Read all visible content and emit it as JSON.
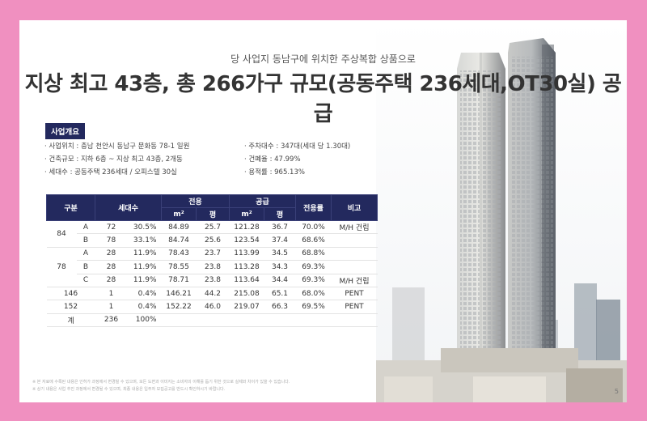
{
  "header": {
    "subtitle": "당 사업지 동남구에 위치한 주상복합 상품으로",
    "title": "지상 최고 43층, 총 266가구 규모(공동주택 236세대,OT30실) 공급"
  },
  "overview": {
    "badge": "사업개요",
    "left": [
      "· 사업위치 : 충남 천안시 동남구 문화동 78-1 일원",
      "· 건축규모 : 지하 6층 ~ 지상 최고 43층, 2개동",
      "· 세대수 : 공동주택 236세대 / 오피스텔 30실"
    ],
    "right": [
      "· 주차대수 : 347대(세대 당 1.30대)",
      "· 건폐율 : 47.99%",
      "· 용적률 : 965.13%"
    ]
  },
  "table": {
    "headers": {
      "group": "구분",
      "units": "세대수",
      "exclusive": "전용",
      "supply": "공급",
      "ratio": "전용률",
      "note": "비고",
      "m2": "m²",
      "pyeong": "평"
    },
    "rows": [
      {
        "size": "84",
        "type": "A",
        "units": "72",
        "pct": "30.5%",
        "ex_m2": "84.89",
        "ex_py": "25.7",
        "su_m2": "121.28",
        "su_py": "36.7",
        "ratio": "70.0%",
        "note": "M/H 건립"
      },
      {
        "size": "",
        "type": "B",
        "units": "78",
        "pct": "33.1%",
        "ex_m2": "84.74",
        "ex_py": "25.6",
        "su_m2": "123.54",
        "su_py": "37.4",
        "ratio": "68.6%",
        "note": ""
      },
      {
        "size": "",
        "type": "A",
        "units": "28",
        "pct": "11.9%",
        "ex_m2": "78.43",
        "ex_py": "23.7",
        "su_m2": "113.99",
        "su_py": "34.5",
        "ratio": "68.8%",
        "note": ""
      },
      {
        "size": "78",
        "type": "B",
        "units": "28",
        "pct": "11.9%",
        "ex_m2": "78.55",
        "ex_py": "23.8",
        "su_m2": "113.28",
        "su_py": "34.3",
        "ratio": "69.3%",
        "note": ""
      },
      {
        "size": "",
        "type": "C",
        "units": "28",
        "pct": "11.9%",
        "ex_m2": "78.71",
        "ex_py": "23.8",
        "su_m2": "113.64",
        "su_py": "34.4",
        "ratio": "69.3%",
        "note": "M/H 건립"
      },
      {
        "size": "146",
        "type": "",
        "units": "1",
        "pct": "0.4%",
        "ex_m2": "146.21",
        "ex_py": "44.2",
        "su_m2": "215.08",
        "su_py": "65.1",
        "ratio": "68.0%",
        "note": "PENT"
      },
      {
        "size": "152",
        "type": "",
        "units": "1",
        "pct": "0.4%",
        "ex_m2": "152.22",
        "ex_py": "46.0",
        "su_m2": "219.07",
        "su_py": "66.3",
        "ratio": "69.5%",
        "note": "PENT"
      },
      {
        "size": "계",
        "type": "",
        "units": "236",
        "pct": "100%",
        "ex_m2": "",
        "ex_py": "",
        "su_m2": "",
        "su_py": "",
        "ratio": "",
        "note": ""
      }
    ]
  },
  "footer": {
    "note1": "※ 본 자료에 수록된 내용은 인허가 과정에서 변경될 수 있으며, 모든 도면과 이미지는 소비자의 이해를 돕기 위한 것으로 실제와 차이가 있을 수 있습니다.",
    "note2": "※ 상기 내용은 사업 추진 과정에서 변경될 수 있으며, 최종 내용은 입주자 모집공고를 반드시 확인하시기 바랍니다.",
    "page": "5"
  },
  "colors": {
    "navy": "#23295e",
    "border": "#f090c0"
  }
}
